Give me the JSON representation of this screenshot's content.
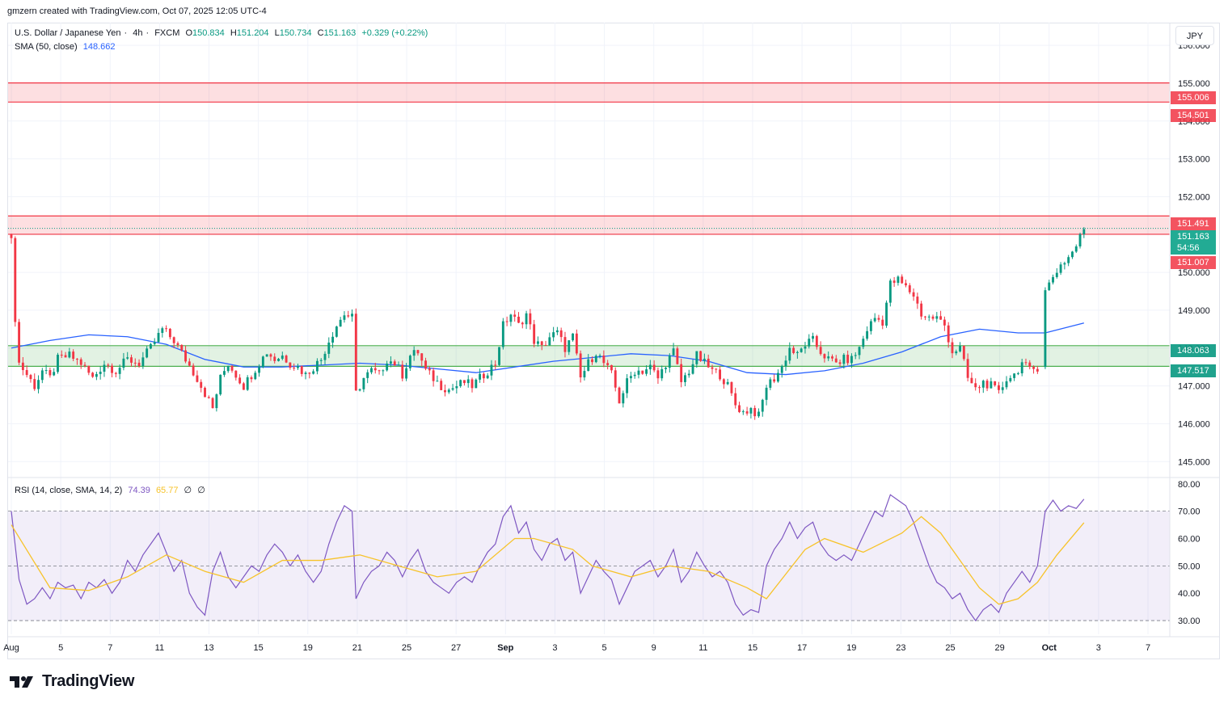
{
  "header": {
    "created_by": "gmzern created with TradingView.com, Oct 07, 2025 12:05 UTC-4"
  },
  "symbol": {
    "name": "U.S. Dollar / Japanese Yen",
    "interval": "4h",
    "exchange": "FXCM",
    "open_label": "O",
    "open": "150.834",
    "high_label": "H",
    "high": "151.204",
    "low_label": "L",
    "low": "150.734",
    "close_label": "C",
    "close": "151.163",
    "change": "+0.329 (+0.22%)"
  },
  "sma_legend": {
    "label": "SMA (50, close)",
    "value": "148.662"
  },
  "rsi_legend": {
    "label": "RSI (14, close, SMA, 14, 2)",
    "rsi": "74.39",
    "rsi_sma": "65.77",
    "extra1": "∅",
    "extra2": "∅"
  },
  "currency_button": "JPY",
  "price_tags": {
    "zone1_top": "155.006",
    "zone1_bottom": "154.501",
    "zone2_top": "151.491",
    "last_price": "151.163",
    "countdown": "54:56",
    "zone2_bottom": "151.007",
    "zone3_top": "148.063",
    "zone3_bottom": "147.517"
  },
  "brand": {
    "name": "TradingView"
  },
  "colors": {
    "up": "#089981",
    "down": "#f23645",
    "sma": "#2962ff",
    "rsi": "#7e57c2",
    "rsi_sma": "#f7c32a",
    "resistance_fill": "#f23645",
    "support_fill": "#4caf50",
    "rsi_band": "#7e57c2"
  },
  "chart_data": [
    {
      "type": "candlestick",
      "title": "U.S. Dollar / Japanese Yen · 4h · FXCM",
      "y_axis_ticks": [
        "156.000",
        "155.000",
        "154.000",
        "153.000",
        "152.000",
        "151.000",
        "150.000",
        "149.000",
        "148.000",
        "147.000",
        "146.000",
        "145.000"
      ],
      "ylim": [
        144.6,
        156.6
      ],
      "x_axis_ticks": [
        "Aug",
        "5",
        "7",
        "11",
        "13",
        "15",
        "19",
        "21",
        "25",
        "27",
        "Sep",
        "3",
        "5",
        "9",
        "11",
        "15",
        "17",
        "19",
        "23",
        "25",
        "29",
        "Oct",
        "3",
        "7"
      ],
      "zones": [
        {
          "kind": "resistance",
          "top": 155.006,
          "bottom": 154.501
        },
        {
          "kind": "resistance",
          "top": 151.491,
          "bottom": 151.007
        },
        {
          "kind": "support",
          "top": 148.063,
          "bottom": 147.517
        }
      ],
      "close_path": [
        [
          0,
          150.8
        ],
        [
          1,
          148.8
        ],
        [
          2,
          147.6
        ],
        [
          4,
          147.3
        ],
        [
          6,
          147.0
        ],
        [
          8,
          147.4
        ],
        [
          10,
          147.2
        ],
        [
          12,
          147.7
        ],
        [
          15,
          147.8
        ],
        [
          18,
          147.6
        ],
        [
          21,
          147.2
        ],
        [
          24,
          147.6
        ],
        [
          27,
          147.4
        ],
        [
          30,
          147.7
        ],
        [
          33,
          147.6
        ],
        [
          36,
          148.0
        ],
        [
          39,
          148.5
        ],
        [
          42,
          148.2
        ],
        [
          45,
          147.7
        ],
        [
          48,
          147.2
        ],
        [
          50,
          146.8
        ],
        [
          52,
          146.4
        ],
        [
          54,
          147.2
        ],
        [
          56,
          147.6
        ],
        [
          58,
          147.3
        ],
        [
          60,
          147.0
        ],
        [
          62,
          147.3
        ],
        [
          64,
          147.6
        ],
        [
          66,
          147.9
        ],
        [
          68,
          147.7
        ],
        [
          70,
          147.8
        ],
        [
          72,
          147.6
        ],
        [
          74,
          147.5
        ],
        [
          76,
          147.3
        ],
        [
          78,
          147.5
        ],
        [
          80,
          147.7
        ],
        [
          82,
          148.2
        ],
        [
          84,
          148.6
        ],
        [
          86,
          148.9
        ],
        [
          88,
          148.8
        ],
        [
          89,
          146.8
        ],
        [
          91,
          147.2
        ],
        [
          93,
          147.4
        ],
        [
          95,
          147.3
        ],
        [
          97,
          147.7
        ],
        [
          99,
          147.6
        ],
        [
          101,
          147.3
        ],
        [
          103,
          147.8
        ],
        [
          105,
          147.9
        ],
        [
          107,
          147.4
        ],
        [
          109,
          147.2
        ],
        [
          111,
          147.0
        ],
        [
          113,
          146.9
        ],
        [
          115,
          147.0
        ],
        [
          117,
          147.1
        ],
        [
          119,
          147.0
        ],
        [
          121,
          147.2
        ],
        [
          123,
          147.4
        ],
        [
          125,
          147.6
        ],
        [
          127,
          148.6
        ],
        [
          129,
          148.9
        ],
        [
          131,
          148.6
        ],
        [
          133,
          148.9
        ],
        [
          135,
          148.2
        ],
        [
          137,
          148.0
        ],
        [
          139,
          148.3
        ],
        [
          141,
          148.4
        ],
        [
          143,
          148.0
        ],
        [
          145,
          148.3
        ],
        [
          147,
          147.2
        ],
        [
          149,
          147.6
        ],
        [
          151,
          147.9
        ],
        [
          153,
          147.6
        ],
        [
          155,
          147.3
        ],
        [
          157,
          146.6
        ],
        [
          159,
          147.1
        ],
        [
          161,
          147.4
        ],
        [
          163,
          147.4
        ],
        [
          165,
          147.5
        ],
        [
          167,
          147.2
        ],
        [
          169,
          147.6
        ],
        [
          171,
          147.9
        ],
        [
          173,
          147.1
        ],
        [
          175,
          147.4
        ],
        [
          177,
          147.8
        ],
        [
          179,
          147.6
        ],
        [
          181,
          147.4
        ],
        [
          183,
          147.3
        ],
        [
          185,
          147.0
        ],
        [
          187,
          146.5
        ],
        [
          189,
          146.3
        ],
        [
          191,
          146.4
        ],
        [
          193,
          146.2
        ],
        [
          195,
          147.0
        ],
        [
          197,
          147.2
        ],
        [
          199,
          147.5
        ],
        [
          201,
          148.0
        ],
        [
          203,
          147.8
        ],
        [
          205,
          148.1
        ],
        [
          207,
          148.2
        ],
        [
          209,
          147.9
        ],
        [
          211,
          147.7
        ],
        [
          213,
          147.6
        ],
        [
          215,
          147.7
        ],
        [
          217,
          147.7
        ],
        [
          219,
          148.0
        ],
        [
          221,
          148.5
        ],
        [
          223,
          148.8
        ],
        [
          225,
          148.7
        ],
        [
          227,
          149.7
        ],
        [
          229,
          149.8
        ],
        [
          231,
          149.6
        ],
        [
          233,
          149.4
        ],
        [
          235,
          148.9
        ],
        [
          237,
          148.8
        ],
        [
          239,
          148.8
        ],
        [
          241,
          148.6
        ],
        [
          243,
          147.9
        ],
        [
          245,
          148.0
        ],
        [
          247,
          147.2
        ],
        [
          249,
          146.9
        ],
        [
          251,
          147.1
        ],
        [
          253,
          147.0
        ],
        [
          255,
          146.8
        ],
        [
          257,
          147.2
        ],
        [
          259,
          147.3
        ],
        [
          261,
          147.6
        ],
        [
          263,
          147.4
        ],
        [
          265,
          147.5
        ],
        [
          267,
          149.5
        ],
        [
          269,
          149.9
        ],
        [
          271,
          150.2
        ],
        [
          273,
          150.4
        ],
        [
          275,
          150.7
        ],
        [
          277,
          151.16
        ]
      ]
    },
    {
      "type": "line",
      "title": "SMA (50, close)",
      "last_value": 148.662,
      "points": [
        [
          0,
          148.0
        ],
        [
          10,
          148.2
        ],
        [
          20,
          148.35
        ],
        [
          30,
          148.3
        ],
        [
          40,
          148.1
        ],
        [
          50,
          147.7
        ],
        [
          60,
          147.5
        ],
        [
          70,
          147.5
        ],
        [
          80,
          147.55
        ],
        [
          90,
          147.6
        ],
        [
          100,
          147.55
        ],
        [
          110,
          147.45
        ],
        [
          120,
          147.35
        ],
        [
          130,
          147.5
        ],
        [
          140,
          147.65
        ],
        [
          150,
          147.75
        ],
        [
          160,
          147.85
        ],
        [
          170,
          147.8
        ],
        [
          180,
          147.65
        ],
        [
          190,
          147.35
        ],
        [
          200,
          147.3
        ],
        [
          210,
          147.4
        ],
        [
          220,
          147.6
        ],
        [
          230,
          147.9
        ],
        [
          240,
          148.3
        ],
        [
          250,
          148.5
        ],
        [
          260,
          148.4
        ],
        [
          267,
          148.4
        ],
        [
          277,
          148.662
        ]
      ]
    },
    {
      "type": "line",
      "title": "RSI (14, close, SMA, 14, 2)",
      "y_axis_ticks": [
        "80.00",
        "70.00",
        "60.00",
        "50.00",
        "40.00",
        "30.00"
      ],
      "ylim": [
        25,
        82
      ],
      "band": [
        30,
        70
      ],
      "midline": 50,
      "rsi_last": 74.39,
      "rsi_sma_last": 65.77,
      "rsi": [
        [
          0,
          70
        ],
        [
          2,
          45
        ],
        [
          4,
          36
        ],
        [
          6,
          38
        ],
        [
          8,
          42
        ],
        [
          10,
          38
        ],
        [
          12,
          44
        ],
        [
          14,
          42
        ],
        [
          16,
          43
        ],
        [
          18,
          38
        ],
        [
          20,
          44
        ],
        [
          22,
          42
        ],
        [
          24,
          45
        ],
        [
          26,
          40
        ],
        [
          28,
          44
        ],
        [
          30,
          52
        ],
        [
          32,
          48
        ],
        [
          34,
          54
        ],
        [
          36,
          58
        ],
        [
          38,
          62
        ],
        [
          40,
          55
        ],
        [
          42,
          48
        ],
        [
          44,
          52
        ],
        [
          46,
          40
        ],
        [
          48,
          35
        ],
        [
          50,
          32
        ],
        [
          52,
          48
        ],
        [
          54,
          55
        ],
        [
          56,
          46
        ],
        [
          58,
          42
        ],
        [
          60,
          46
        ],
        [
          62,
          50
        ],
        [
          64,
          48
        ],
        [
          66,
          54
        ],
        [
          68,
          58
        ],
        [
          70,
          55
        ],
        [
          72,
          50
        ],
        [
          74,
          54
        ],
        [
          76,
          48
        ],
        [
          78,
          44
        ],
        [
          80,
          48
        ],
        [
          82,
          58
        ],
        [
          84,
          66
        ],
        [
          86,
          72
        ],
        [
          88,
          70
        ],
        [
          89,
          38
        ],
        [
          91,
          44
        ],
        [
          93,
          48
        ],
        [
          95,
          50
        ],
        [
          97,
          55
        ],
        [
          99,
          52
        ],
        [
          101,
          46
        ],
        [
          103,
          52
        ],
        [
          105,
          56
        ],
        [
          107,
          48
        ],
        [
          109,
          44
        ],
        [
          111,
          42
        ],
        [
          113,
          40
        ],
        [
          115,
          44
        ],
        [
          117,
          46
        ],
        [
          119,
          44
        ],
        [
          121,
          50
        ],
        [
          123,
          55
        ],
        [
          125,
          58
        ],
        [
          127,
          68
        ],
        [
          129,
          72
        ],
        [
          131,
          62
        ],
        [
          133,
          66
        ],
        [
          135,
          56
        ],
        [
          137,
          52
        ],
        [
          139,
          58
        ],
        [
          141,
          60
        ],
        [
          143,
          52
        ],
        [
          145,
          55
        ],
        [
          147,
          40
        ],
        [
          149,
          46
        ],
        [
          151,
          52
        ],
        [
          153,
          48
        ],
        [
          155,
          45
        ],
        [
          157,
          36
        ],
        [
          159,
          42
        ],
        [
          161,
          48
        ],
        [
          163,
          50
        ],
        [
          165,
          52
        ],
        [
          167,
          46
        ],
        [
          169,
          50
        ],
        [
          171,
          56
        ],
        [
          173,
          44
        ],
        [
          175,
          48
        ],
        [
          177,
          55
        ],
        [
          179,
          50
        ],
        [
          181,
          46
        ],
        [
          183,
          48
        ],
        [
          185,
          44
        ],
        [
          187,
          36
        ],
        [
          189,
          32
        ],
        [
          191,
          34
        ],
        [
          193,
          33
        ],
        [
          195,
          50
        ],
        [
          197,
          56
        ],
        [
          199,
          60
        ],
        [
          201,
          66
        ],
        [
          203,
          60
        ],
        [
          205,
          64
        ],
        [
          207,
          66
        ],
        [
          209,
          58
        ],
        [
          211,
          54
        ],
        [
          213,
          52
        ],
        [
          215,
          54
        ],
        [
          217,
          52
        ],
        [
          219,
          58
        ],
        [
          221,
          64
        ],
        [
          223,
          70
        ],
        [
          225,
          68
        ],
        [
          227,
          76
        ],
        [
          229,
          74
        ],
        [
          231,
          72
        ],
        [
          233,
          66
        ],
        [
          235,
          58
        ],
        [
          237,
          50
        ],
        [
          239,
          44
        ],
        [
          241,
          42
        ],
        [
          243,
          38
        ],
        [
          245,
          40
        ],
        [
          247,
          34
        ],
        [
          249,
          30
        ],
        [
          251,
          34
        ],
        [
          253,
          36
        ],
        [
          255,
          33
        ],
        [
          257,
          40
        ],
        [
          259,
          44
        ],
        [
          261,
          48
        ],
        [
          263,
          44
        ],
        [
          265,
          50
        ],
        [
          267,
          70
        ],
        [
          269,
          74
        ],
        [
          271,
          70
        ],
        [
          273,
          72
        ],
        [
          275,
          71
        ],
        [
          277,
          74.39
        ]
      ],
      "rsi_sma": [
        [
          0,
          65
        ],
        [
          10,
          42
        ],
        [
          20,
          41
        ],
        [
          30,
          46
        ],
        [
          40,
          54
        ],
        [
          50,
          48
        ],
        [
          60,
          44
        ],
        [
          70,
          52
        ],
        [
          80,
          52
        ],
        [
          90,
          54
        ],
        [
          100,
          50
        ],
        [
          110,
          46
        ],
        [
          120,
          48
        ],
        [
          130,
          60
        ],
        [
          135,
          60
        ],
        [
          145,
          56
        ],
        [
          150,
          50
        ],
        [
          160,
          46
        ],
        [
          170,
          50
        ],
        [
          180,
          48
        ],
        [
          190,
          42
        ],
        [
          195,
          38
        ],
        [
          205,
          56
        ],
        [
          210,
          60
        ],
        [
          220,
          55
        ],
        [
          230,
          62
        ],
        [
          235,
          68
        ],
        [
          240,
          62
        ],
        [
          250,
          42
        ],
        [
          255,
          36
        ],
        [
          260,
          38
        ],
        [
          265,
          44
        ],
        [
          270,
          54
        ],
        [
          277,
          65.77
        ]
      ]
    }
  ]
}
